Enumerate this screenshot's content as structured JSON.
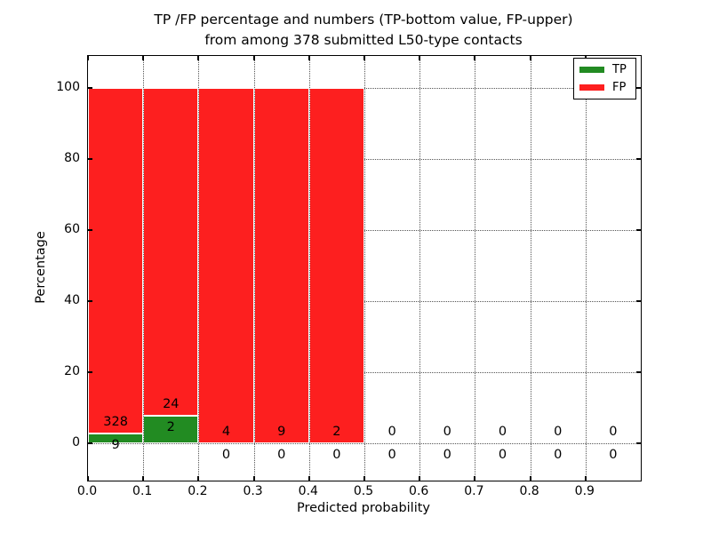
{
  "figure": {
    "title_line1": "TP /FP percentage and numbers (TP-bottom value, FP-upper)",
    "title_line2": "from among 378 submitted L50-type contacts",
    "xlabel": "Predicted probability",
    "ylabel": "Percentage"
  },
  "legend": {
    "items": [
      {
        "label": "TP",
        "color": "#228b22"
      },
      {
        "label": "FP",
        "color": "#fd1f1f"
      }
    ]
  },
  "chart_data": {
    "type": "bar",
    "stacked": true,
    "title": "TP /FP percentage and numbers (TP-bottom value, FP-upper) from among 378 submitted L50-type contacts",
    "xlabel": "Predicted probability",
    "ylabel": "Percentage",
    "xlim": [
      0.0,
      1.0
    ],
    "ylim": [
      -11,
      109
    ],
    "grid": "dotted",
    "legend_position": "upper right",
    "total_submitted": 378,
    "bin_width": 0.1,
    "bin_starts": [
      0.0,
      0.1,
      0.2,
      0.3,
      0.4,
      0.5,
      0.6,
      0.7,
      0.8,
      0.9
    ],
    "x_tick_labels": [
      "0.0",
      "0.1",
      "0.2",
      "0.3",
      "0.4",
      "0.5",
      "0.6",
      "0.7",
      "0.8",
      "0.9"
    ],
    "y_ticks": [
      0,
      20,
      40,
      60,
      80,
      100
    ],
    "series": [
      {
        "name": "TP",
        "color": "#228b22",
        "counts": [
          9,
          2,
          0,
          0,
          0,
          0,
          0,
          0,
          0,
          0
        ],
        "percent": [
          2.67,
          7.69,
          0,
          0,
          0,
          0,
          0,
          0,
          0,
          0
        ]
      },
      {
        "name": "FP",
        "color": "#fd1f1f",
        "counts": [
          328,
          24,
          4,
          9,
          2,
          0,
          0,
          0,
          0,
          0
        ],
        "percent": [
          97.33,
          92.31,
          100,
          100,
          100,
          0,
          0,
          0,
          0,
          0
        ]
      }
    ]
  }
}
